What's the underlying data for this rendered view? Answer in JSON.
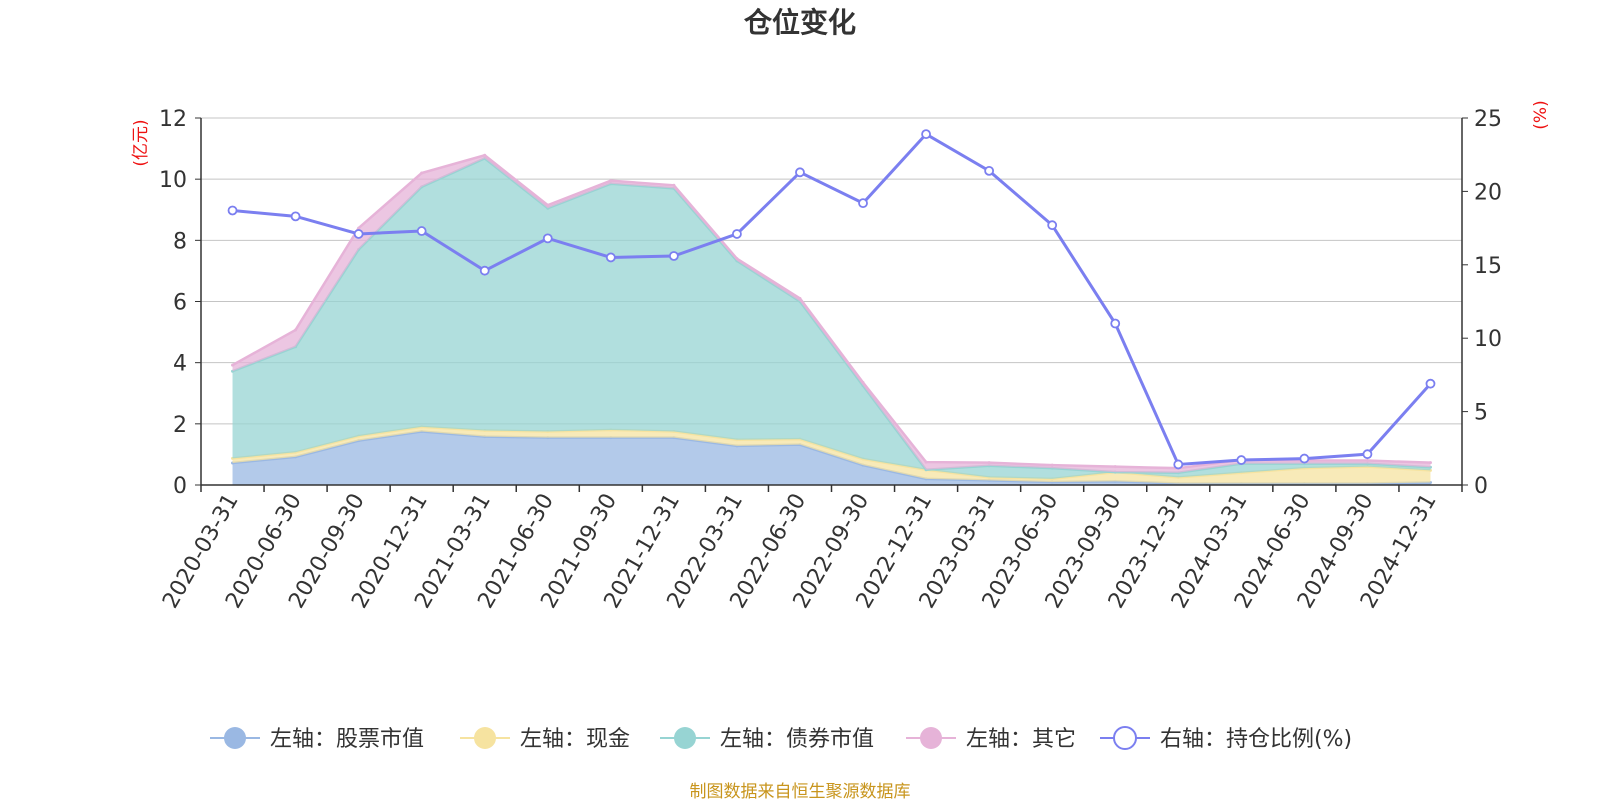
{
  "chart_data": {
    "type": "area",
    "title": "仓位变化",
    "source_note": "制图数据来自恒生聚源数据库",
    "colors": {
      "stock": "#9ab8e3",
      "cash": "#f6e3a0",
      "bond": "#97d4d3",
      "other": "#e6b3d8",
      "ratio": "#7b7ff0",
      "unit": "#ee1111",
      "source": "#c8951d",
      "grid": "#c4c4c4",
      "axis": "#333333"
    },
    "left_axis": {
      "unit_label": "(亿元)",
      "min": 0,
      "max": 12,
      "ticks": [
        "0",
        "2",
        "4",
        "6",
        "8",
        "10",
        "12"
      ]
    },
    "right_axis": {
      "unit_label": "(%)",
      "min": 0,
      "max": 25,
      "ticks": [
        "0",
        "5",
        "10",
        "15",
        "20",
        "25"
      ]
    },
    "categories": [
      "2020-03-31",
      "2020-06-30",
      "2020-09-30",
      "2020-12-31",
      "2021-03-31",
      "2021-06-30",
      "2021-09-30",
      "2021-12-31",
      "2022-03-31",
      "2022-06-30",
      "2022-09-30",
      "2022-12-31",
      "2023-03-31",
      "2023-06-30",
      "2023-09-30",
      "2023-12-31",
      "2024-03-31",
      "2024-06-30",
      "2024-09-30",
      "2024-12-31"
    ],
    "series": [
      {
        "key": "stock",
        "name": "左轴：股票市值",
        "axis": "left",
        "type": "area",
        "values": [
          0.72,
          0.92,
          1.45,
          1.75,
          1.58,
          1.55,
          1.55,
          1.55,
          1.28,
          1.32,
          0.65,
          0.2,
          0.15,
          0.1,
          0.12,
          0.05,
          0.05,
          0.05,
          0.05,
          0.08
        ]
      },
      {
        "key": "cash",
        "name": "左轴：现金",
        "axis": "left",
        "type": "area",
        "values": [
          0.15,
          0.15,
          0.15,
          0.15,
          0.2,
          0.2,
          0.25,
          0.2,
          0.2,
          0.18,
          0.2,
          0.3,
          0.1,
          0.1,
          0.3,
          0.2,
          0.35,
          0.5,
          0.55,
          0.4
        ]
      },
      {
        "key": "bond",
        "name": "左轴：债券市值",
        "axis": "left",
        "type": "area",
        "values": [
          2.85,
          3.45,
          6.1,
          7.85,
          8.9,
          7.3,
          8.05,
          7.95,
          5.85,
          4.5,
          2.4,
          0,
          0.38,
          0.35,
          0,
          0.15,
          0.3,
          0.15,
          0.1,
          0.1
        ]
      },
      {
        "key": "other",
        "name": "左轴：其它",
        "axis": "left",
        "type": "area",
        "values": [
          0.2,
          0.55,
          0.7,
          0.45,
          0.1,
          0.1,
          0.1,
          0.1,
          0.07,
          0.1,
          0.1,
          0.25,
          0.1,
          0.1,
          0.18,
          0.15,
          0.12,
          0.1,
          0.1,
          0.15
        ]
      },
      {
        "key": "ratio",
        "name": "右轴：持仓比例(%)",
        "axis": "right",
        "type": "line",
        "values": [
          18.7,
          18.3,
          17.1,
          17.3,
          14.6,
          16.8,
          15.5,
          15.6,
          17.1,
          21.3,
          19.2,
          23.9,
          21.4,
          17.7,
          11.0,
          1.4,
          1.7,
          1.8,
          2.1,
          6.9
        ]
      }
    ]
  }
}
